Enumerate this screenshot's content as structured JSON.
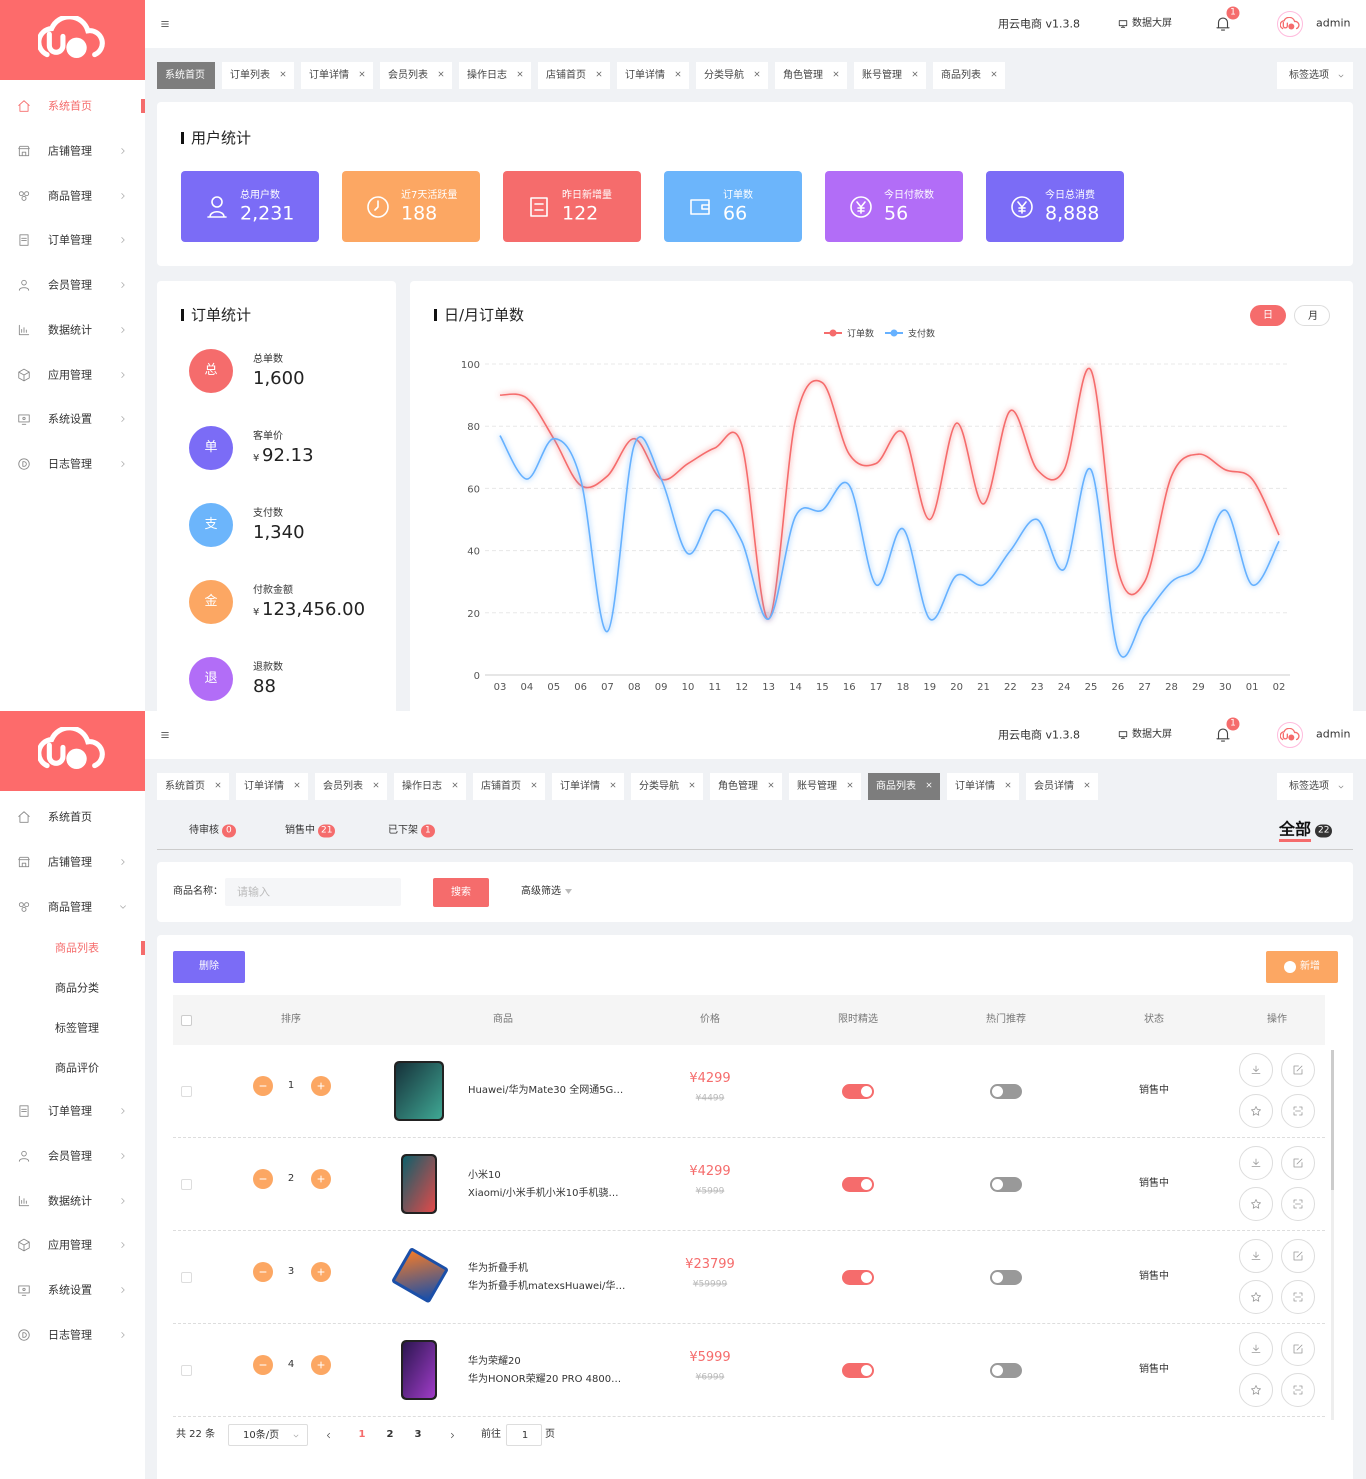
{
  "screen1": {
    "header": {
      "app_name": "用云电商 v1.3.8",
      "big_screen": "数据大屏",
      "badge": "1",
      "user": "admin"
    },
    "sidebar": {
      "items": [
        "系统首页",
        "店铺管理",
        "商品管理",
        "订单管理",
        "会员管理",
        "数据统计",
        "应用管理",
        "系统设置",
        "日志管理"
      ]
    },
    "tabs": {
      "items": [
        "系统首页",
        "订单列表",
        "订单详情",
        "会员列表",
        "操作日志",
        "店铺首页",
        "订单详情",
        "分类导航",
        "角色管理",
        "账号管理",
        "商品列表"
      ],
      "options": "标签选项"
    },
    "user_stats": {
      "title": "用户统计",
      "cards": [
        {
          "label": "总用户数",
          "value": "2,231"
        },
        {
          "label": "近7天活跃量",
          "value": "188"
        },
        {
          "label": "昨日新增量",
          "value": "122"
        },
        {
          "label": "订单数",
          "value": "66"
        },
        {
          "label": "今日付款数",
          "value": "56"
        },
        {
          "label": "今日总消费",
          "value": "8,888"
        }
      ]
    },
    "order_stats": {
      "title": "订单统计",
      "items": [
        {
          "icon": "总",
          "label": "总单数",
          "value": "1,600"
        },
        {
          "icon": "单",
          "label": "客单价",
          "currency": "¥",
          "value": "92.13"
        },
        {
          "icon": "支",
          "label": "支付数",
          "value": "1,340"
        },
        {
          "icon": "金",
          "label": "付款金额",
          "currency": "¥",
          "value": "123,456.00"
        },
        {
          "icon": "退",
          "label": "退款数",
          "value": "88"
        }
      ]
    },
    "chart_toggle": [
      "日",
      "月"
    ]
  },
  "chart_data": {
    "type": "line",
    "title": "日/月订单数",
    "categories": [
      "03",
      "04",
      "05",
      "06",
      "07",
      "08",
      "09",
      "10",
      "11",
      "12",
      "13",
      "14",
      "15",
      "16",
      "17",
      "18",
      "19",
      "20",
      "21",
      "22",
      "23",
      "24",
      "25",
      "26",
      "27",
      "28",
      "29",
      "30",
      "01",
      "02"
    ],
    "series": [
      {
        "name": "订单数",
        "color": "#f56c6c",
        "values": [
          90,
          89,
          76,
          61,
          64,
          76,
          63,
          68,
          73,
          74,
          18,
          82,
          94,
          71,
          68,
          78,
          50,
          81,
          55,
          85,
          66,
          66,
          98,
          34,
          30,
          64,
          71,
          66,
          63,
          45
        ]
      },
      {
        "name": "支付数",
        "color": "#66b1ff",
        "values": [
          77,
          63,
          76,
          63,
          14,
          74,
          63,
          39,
          53,
          43,
          18,
          51,
          53,
          61,
          29,
          47,
          18,
          32,
          29,
          40,
          50,
          34,
          66,
          8,
          19,
          30,
          35,
          53,
          29,
          43
        ]
      }
    ],
    "ylim": [
      0,
      100
    ],
    "yticks": [
      0,
      20,
      40,
      60,
      80,
      100
    ],
    "grid": true,
    "legend": "top",
    "smooth": true
  },
  "screen2": {
    "header": {
      "app_name": "用云电商 v1.3.8",
      "big_screen": "数据大屏",
      "badge": "1",
      "user": "admin"
    },
    "sidebar": {
      "items": [
        "系统首页",
        "店铺管理",
        "商品管理",
        "订单管理",
        "会员管理",
        "数据统计",
        "应用管理",
        "系统设置",
        "日志管理"
      ],
      "sub_items": [
        "商品列表",
        "商品分类",
        "标签管理",
        "商品评价"
      ]
    },
    "tabs": {
      "items": [
        "系统首页",
        "订单详情",
        "会员列表",
        "操作日志",
        "店铺首页",
        "订单详情",
        "分类导航",
        "角色管理",
        "账号管理",
        "商品列表",
        "订单详情",
        "会员详情"
      ],
      "options": "标签选项"
    },
    "status_tabs": [
      {
        "label": "待审核",
        "count": "0"
      },
      {
        "label": "销售中",
        "count": "21"
      },
      {
        "label": "已下架",
        "count": "1"
      }
    ],
    "all_tab": {
      "label": "全部",
      "count": "22"
    },
    "search": {
      "label": "商品名称：",
      "placeholder": "请输入",
      "button": "搜索",
      "advanced": "高级筛选"
    },
    "actions": {
      "delete": "删除",
      "add": "新增"
    },
    "table": {
      "columns": [
        "排序",
        "商品",
        "价格",
        "限时精选",
        "热门推荐",
        "状态",
        "操作"
      ],
      "rows": [
        {
          "sort": "1",
          "name": [
            "Huawei/华为Mate30 全网通5G…"
          ],
          "price": "¥4299",
          "original_price": "¥4499",
          "status": "销售中"
        },
        {
          "sort": "2",
          "name": [
            "小米10",
            "Xiaomi/小米手机小米10手机骁…"
          ],
          "price": "¥4299",
          "original_price": "¥5999",
          "status": "销售中"
        },
        {
          "sort": "3",
          "name": [
            "华为折叠手机",
            "华为折叠手机matexsHuawei/华…"
          ],
          "price": "¥23799",
          "original_price": "¥59999",
          "status": "销售中"
        },
        {
          "sort": "4",
          "name": [
            "华为荣耀20",
            "华为HONOR荣耀20 PRO 4800…"
          ],
          "price": "¥5999",
          "original_price": "¥6999",
          "status": "销售中"
        }
      ]
    },
    "pagination": {
      "total": "共 22 条",
      "page_size": "10条/页",
      "pages": [
        "1",
        "2",
        "3"
      ],
      "goto": "前往",
      "goto_value": "1",
      "page_unit": "页"
    }
  }
}
